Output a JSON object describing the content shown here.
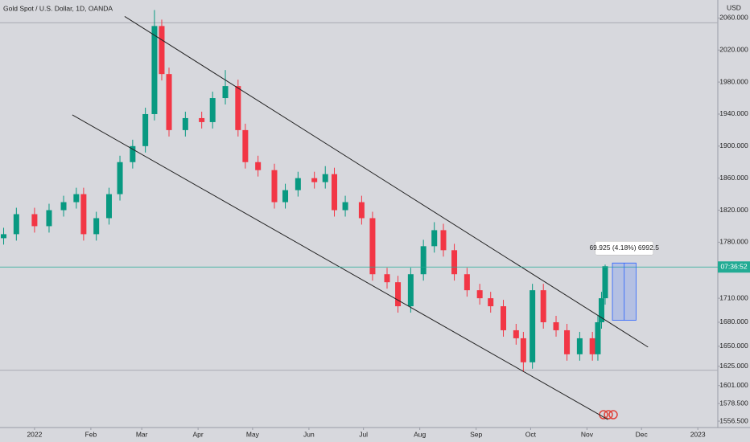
{
  "chart_data": {
    "type": "candlestick",
    "title": "Gold Spot / U.S. Dollar, 1D, OANDA",
    "currency": "USD",
    "x": [
      -17,
      -10,
      0,
      8,
      16,
      23,
      27,
      34,
      41,
      47,
      54,
      61,
      66,
      70,
      74,
      83,
      92,
      98,
      105,
      112,
      116,
      123,
      132,
      138,
      145,
      154,
      160,
      165,
      171,
      180,
      186,
      194,
      200,
      207,
      214,
      220,
      225,
      231,
      238,
      245,
      251,
      258,
      265,
      269,
      274,
      280,
      287,
      293,
      300,
      307,
      310,
      312,
      314
    ],
    "open": [
      1785,
      1790,
      1815,
      1800,
      1820,
      1830,
      1840,
      1790,
      1810,
      1840,
      1880,
      1900,
      1940,
      2050,
      1990,
      1920,
      1935,
      1930,
      1960,
      1975,
      1920,
      1880,
      1870,
      1830,
      1845,
      1860,
      1855,
      1865,
      1820,
      1830,
      1810,
      1740,
      1730,
      1700,
      1740,
      1775,
      1795,
      1770,
      1740,
      1720,
      1710,
      1700,
      1670,
      1660,
      1630,
      1720,
      1680,
      1670,
      1640,
      1660,
      1640,
      1680,
      1710
    ],
    "high": [
      1798,
      1823,
      1823,
      1828,
      1838,
      1848,
      1848,
      1818,
      1848,
      1888,
      1908,
      1948,
      2070,
      2058,
      1998,
      1943,
      1943,
      1968,
      1995,
      1983,
      1928,
      1888,
      1878,
      1853,
      1868,
      1868,
      1875,
      1873,
      1838,
      1838,
      1818,
      1748,
      1738,
      1748,
      1783,
      1805,
      1803,
      1778,
      1748,
      1728,
      1718,
      1708,
      1678,
      1668,
      1728,
      1728,
      1688,
      1678,
      1668,
      1668,
      1688,
      1718,
      1752
    ],
    "low": [
      1777,
      1782,
      1792,
      1792,
      1812,
      1822,
      1782,
      1782,
      1802,
      1832,
      1872,
      1892,
      1932,
      1982,
      1912,
      1912,
      1922,
      1922,
      1952,
      1912,
      1872,
      1862,
      1822,
      1822,
      1837,
      1847,
      1847,
      1812,
      1812,
      1802,
      1732,
      1722,
      1692,
      1692,
      1732,
      1767,
      1762,
      1732,
      1712,
      1702,
      1692,
      1662,
      1652,
      1618,
      1622,
      1672,
      1662,
      1632,
      1632,
      1632,
      1632,
      1672,
      1702
    ],
    "close": [
      1790,
      1815,
      1800,
      1820,
      1830,
      1840,
      1790,
      1810,
      1840,
      1880,
      1900,
      1940,
      2050,
      1990,
      1920,
      1935,
      1930,
      1960,
      1975,
      1920,
      1880,
      1870,
      1830,
      1845,
      1860,
      1855,
      1865,
      1820,
      1830,
      1810,
      1740,
      1730,
      1700,
      1740,
      1775,
      1795,
      1770,
      1740,
      1720,
      1710,
      1700,
      1670,
      1660,
      1630,
      1720,
      1680,
      1670,
      1640,
      1660,
      1640,
      1680,
      1710,
      1750
    ],
    "up_color": "#089981",
    "down_color": "#f23645",
    "xlim": [
      -19,
      376
    ],
    "ylim": [
      1548.5,
      2082.5
    ],
    "xticks": [
      {
        "value": 0,
        "label": "2022"
      },
      {
        "value": 31,
        "label": "Feb"
      },
      {
        "value": 59,
        "label": "Mar"
      },
      {
        "value": 90,
        "label": "Apr"
      },
      {
        "value": 120,
        "label": "May"
      },
      {
        "value": 151,
        "label": "Jun"
      },
      {
        "value": 181,
        "label": "Jul"
      },
      {
        "value": 212,
        "label": "Aug"
      },
      {
        "value": 243,
        "label": "Sep"
      },
      {
        "value": 273,
        "label": "Oct"
      },
      {
        "value": 304,
        "label": "Nov"
      },
      {
        "value": 334,
        "label": "Dec"
      },
      {
        "value": 365,
        "label": "2023"
      }
    ],
    "yticks": [
      {
        "value": 2060,
        "label": "2060.000"
      },
      {
        "value": 2020,
        "label": "2020.000"
      },
      {
        "value": 1980,
        "label": "1980.000"
      },
      {
        "value": 1940,
        "label": "1940.000"
      },
      {
        "value": 1900,
        "label": "1900.000"
      },
      {
        "value": 1860,
        "label": "1860.000"
      },
      {
        "value": 1820,
        "label": "1820.000"
      },
      {
        "value": 1780,
        "label": "1780.000"
      },
      {
        "value": 1710,
        "label": "1710.000"
      },
      {
        "value": 1680,
        "label": "1680.000"
      },
      {
        "value": 1650,
        "label": "1650.000"
      },
      {
        "value": 1625,
        "label": "1625.000"
      },
      {
        "value": 1601,
        "label": "1601.000"
      },
      {
        "value": 1578.5,
        "label": "1578.500"
      },
      {
        "value": 1556.5,
        "label": "1556.500"
      }
    ],
    "channel_lines": [
      {
        "x": [
          49.6,
          337.6
        ],
        "y": [
          2062,
          1649
        ]
      },
      {
        "x": [
          20.8,
          315.5
        ],
        "y": [
          1939,
          1558.5
        ]
      }
    ],
    "horizontal_lines": [
      2054,
      1620
    ],
    "price_line": {
      "value": 1749,
      "color": "#22ab94",
      "label": "07:36:52"
    },
    "measure": {
      "x": [
        318,
        331
      ],
      "y": [
        1682.5,
        1754
      ],
      "label": "69.925 (4.18%) 6992.5"
    }
  }
}
